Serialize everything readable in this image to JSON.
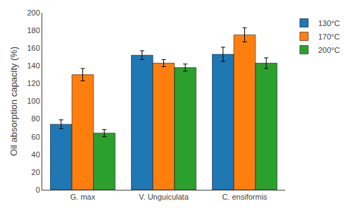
{
  "chart_data": {
    "type": "bar",
    "ylabel": "Oil absorption capacity (%)",
    "categories": [
      "G. max",
      "V. Unguiculata",
      "C. ensiformis"
    ],
    "series": [
      {
        "name": "130°C",
        "values": [
          74,
          152,
          153
        ],
        "errors": [
          5,
          5,
          8
        ]
      },
      {
        "name": "170°C",
        "values": [
          130,
          143,
          175
        ],
        "errors": [
          7,
          4,
          8
        ]
      },
      {
        "name": "200°C",
        "values": [
          64,
          138,
          143
        ],
        "errors": [
          4,
          4,
          6
        ]
      }
    ],
    "ylim": [
      0,
      200
    ],
    "yticks": [
      0,
      20,
      40,
      60,
      80,
      100,
      120,
      140,
      160,
      180,
      200
    ],
    "grid": false,
    "legend": "right"
  }
}
